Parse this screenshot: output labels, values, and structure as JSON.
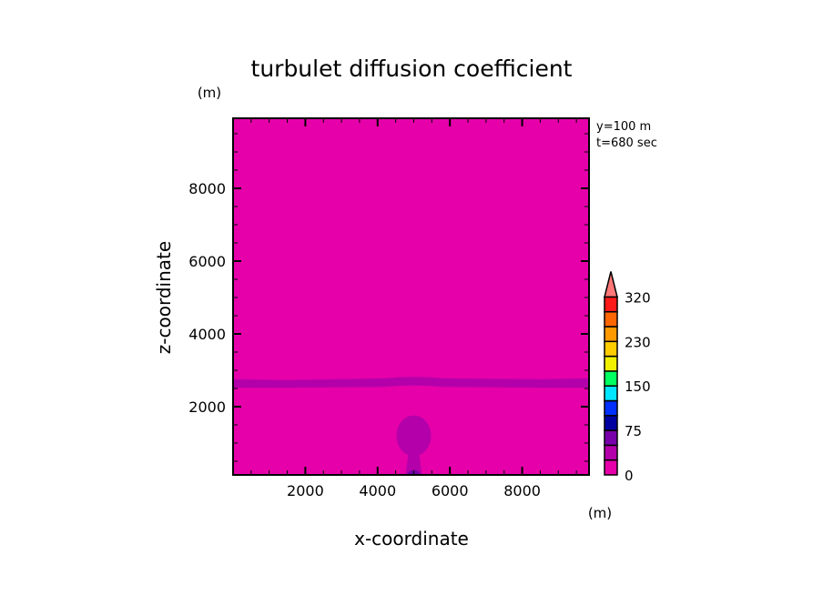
{
  "chart_data": {
    "type": "heatmap",
    "subtype": "filled-contour",
    "title": "turbulet diffusion coefficient",
    "xlabel": "x-coordinate",
    "ylabel": "z-coordinate",
    "x_unit": "(m)",
    "y_unit": "(m)",
    "xlim": [
      0,
      9850
    ],
    "ylim": [
      125,
      9925
    ],
    "xticks": [
      2000,
      4000,
      6000,
      8000
    ],
    "yticks": [
      2000,
      4000,
      6000,
      8000
    ],
    "annotations": [
      "y=100 m",
      "t=680 sec"
    ],
    "background_level_color": "#e600aa",
    "features": [
      {
        "name": "horizontal band",
        "z_range": [
          2520,
          2780
        ],
        "color": "#b400aa"
      },
      {
        "name": "plume blob",
        "x_center": 5000,
        "z_center": 1200,
        "x_radius": 480,
        "z_radius": 560,
        "color": "#b400aa"
      },
      {
        "name": "plume stem",
        "x_center": 5000,
        "z_range": [
          125,
          700
        ],
        "color": "#b400aa"
      },
      {
        "name": "source core",
        "x_center": 5000,
        "z_range": [
          125,
          260
        ],
        "color": "#7800aa"
      },
      {
        "name": "source center",
        "x_center": 5000,
        "z_range": [
          125,
          160
        ],
        "color": "#0000a0"
      }
    ],
    "colorbar": {
      "colors": [
        "#e600aa",
        "#b400aa",
        "#7800aa",
        "#0000a0",
        "#0030ff",
        "#00e6ff",
        "#00ff60",
        "#f0f000",
        "#ffcc00",
        "#ff9900",
        "#ff6600",
        "#ff1a1a"
      ],
      "extend_color": "#ff7777",
      "labels": [
        {
          "text": "0",
          "boundary": 0
        },
        {
          "text": "75",
          "boundary": 3
        },
        {
          "text": "150",
          "boundary": 6
        },
        {
          "text": "230",
          "boundary": 9
        },
        {
          "text": "320",
          "boundary": 12
        }
      ]
    }
  }
}
